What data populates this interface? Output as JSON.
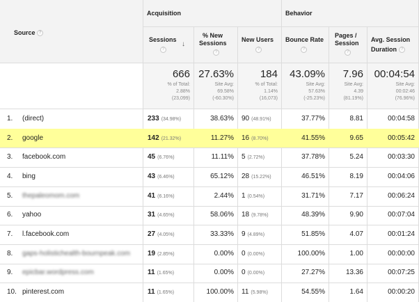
{
  "headers": {
    "source": "Source",
    "acquisition": "Acquisition",
    "behavior": "Behavior",
    "sessions": "Sessions",
    "pct_new_sessions_1": "% New",
    "pct_new_sessions_2": "Sessions",
    "new_users": "New Users",
    "bounce_rate": "Bounce Rate",
    "pages_session_1": "Pages /",
    "pages_session_2": "Session",
    "avg_duration_1": "Avg. Session",
    "avg_duration_2": "Duration",
    "help_glyph": "?",
    "sort_glyph": "↓"
  },
  "summary": {
    "sessions": {
      "value": "666",
      "l1": "% of Total:",
      "l2": "2.88%",
      "l3": "(23,099)"
    },
    "pct_new": {
      "value": "27.63%",
      "l1": "Site Avg:",
      "l2": "69.58%",
      "l3": "(-60.30%)"
    },
    "new_users": {
      "value": "184",
      "l1": "% of Total:",
      "l2": "1.14%",
      "l3": "(16,073)"
    },
    "bounce": {
      "value": "43.09%",
      "l1": "Site Avg:",
      "l2": "57.63%",
      "l3": "(-25.23%)"
    },
    "pages": {
      "value": "7.96",
      "l1": "Site Avg:",
      "l2": "4.39",
      "l3": "(81.19%)"
    },
    "duration": {
      "value": "00:04:54",
      "l1": "Site Avg:",
      "l2": "00:02:46",
      "l3": "(76.96%)"
    }
  },
  "rows": [
    {
      "num": "1.",
      "source": "(direct)",
      "blurred": false,
      "sessions": "233",
      "sessions_pct": "(34.98%)",
      "pct_new": "38.63%",
      "new_users": "90",
      "new_users_pct": "(48.91%)",
      "bounce": "37.77%",
      "pages": "8.81",
      "duration": "00:04:58"
    },
    {
      "num": "2.",
      "source": "google",
      "blurred": false,
      "highlight": true,
      "sessions": "142",
      "sessions_pct": "(21.32%)",
      "pct_new": "11.27%",
      "new_users": "16",
      "new_users_pct": "(8.70%)",
      "bounce": "41.55%",
      "pages": "9.65",
      "duration": "00:05:42"
    },
    {
      "num": "3.",
      "source": "facebook.com",
      "blurred": false,
      "sessions": "45",
      "sessions_pct": "(6.76%)",
      "pct_new": "11.11%",
      "new_users": "5",
      "new_users_pct": "(2.72%)",
      "bounce": "37.78%",
      "pages": "5.24",
      "duration": "00:03:30"
    },
    {
      "num": "4.",
      "source": "bing",
      "blurred": false,
      "sessions": "43",
      "sessions_pct": "(6.46%)",
      "pct_new": "65.12%",
      "new_users": "28",
      "new_users_pct": "(15.22%)",
      "bounce": "46.51%",
      "pages": "8.19",
      "duration": "00:04:06"
    },
    {
      "num": "5.",
      "source": "thepaleomom.com",
      "blurred": true,
      "sessions": "41",
      "sessions_pct": "(6.16%)",
      "pct_new": "2.44%",
      "new_users": "1",
      "new_users_pct": "(0.54%)",
      "bounce": "31.71%",
      "pages": "7.17",
      "duration": "00:06:24"
    },
    {
      "num": "6.",
      "source": "yahoo",
      "blurred": false,
      "sessions": "31",
      "sessions_pct": "(4.65%)",
      "pct_new": "58.06%",
      "new_users": "18",
      "new_users_pct": "(9.78%)",
      "bounce": "48.39%",
      "pages": "9.90",
      "duration": "00:07:04"
    },
    {
      "num": "7.",
      "source": "l.facebook.com",
      "blurred": false,
      "sessions": "27",
      "sessions_pct": "(4.05%)",
      "pct_new": "33.33%",
      "new_users": "9",
      "new_users_pct": "(4.89%)",
      "bounce": "51.85%",
      "pages": "4.07",
      "duration": "00:01:24"
    },
    {
      "num": "8.",
      "source": "gaps-holistichealth-bournpeak.com",
      "blurred": true,
      "sessions": "19",
      "sessions_pct": "(2.85%)",
      "pct_new": "0.00%",
      "new_users": "0",
      "new_users_pct": "(0.00%)",
      "bounce": "100.00%",
      "pages": "1.00",
      "duration": "00:00:00"
    },
    {
      "num": "9.",
      "source": "epicbar.wordpress.com",
      "blurred": true,
      "sessions": "11",
      "sessions_pct": "(1.65%)",
      "pct_new": "0.00%",
      "new_users": "0",
      "new_users_pct": "(0.00%)",
      "bounce": "27.27%",
      "pages": "13.36",
      "duration": "00:07:25"
    },
    {
      "num": "10.",
      "source": "pinterest.com",
      "blurred": false,
      "sessions": "11",
      "sessions_pct": "(1.65%)",
      "pct_new": "100.00%",
      "new_users": "11",
      "new_users_pct": "(5.98%)",
      "bounce": "54.55%",
      "pages": "1.64",
      "duration": "00:00:20"
    }
  ]
}
